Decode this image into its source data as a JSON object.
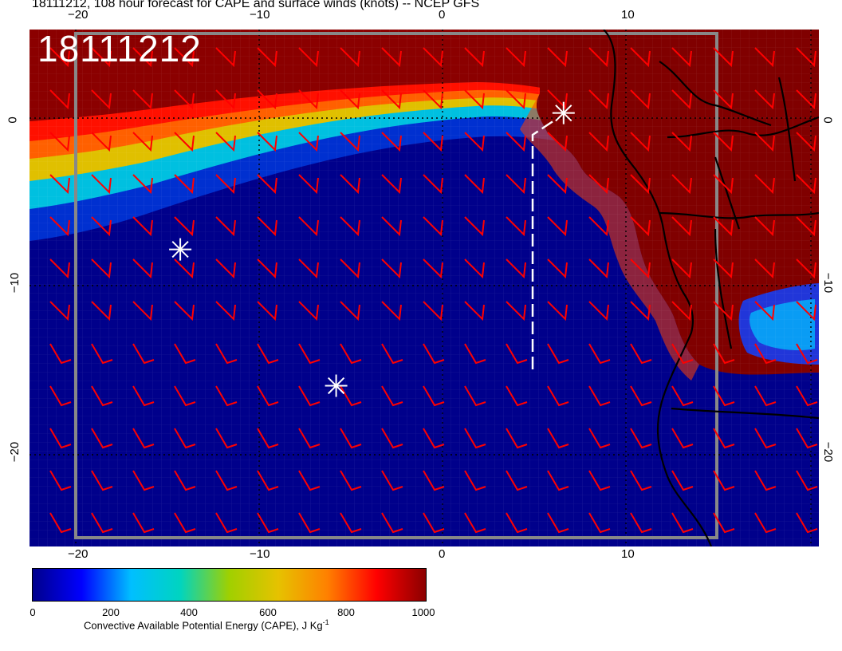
{
  "title": "18111212, 108 hour forecast for CAPE and surface winds (knots) -- NCEP GFS",
  "date_label": "18111212",
  "map": {
    "field": "Convective Available Potential Energy",
    "wind_barb_color": "#ff0000",
    "markers": [
      {
        "name": "storm-marker",
        "lon": -14.3,
        "lat": -7.8
      },
      {
        "name": "storm-marker",
        "lon": -5.8,
        "lat": -15.9
      },
      {
        "name": "storm-marker",
        "lon": 6.6,
        "lat": 0.3
      }
    ],
    "track": [
      [
        4.9,
        -14.8
      ],
      [
        4.9,
        -1.0
      ],
      [
        6.2,
        0.2
      ]
    ],
    "track_color": "#ffffff",
    "land_color": "#7f0000",
    "ocean_color": "#00008b"
  },
  "axes": {
    "top_ticks": [
      "−20",
      "−10",
      "0",
      "10"
    ],
    "bottom_ticks": [
      "−20",
      "−10",
      "0",
      "10"
    ],
    "left_ticks": [
      "0",
      "−10",
      "−20"
    ],
    "right_ticks": [
      "0",
      "−10",
      "−20"
    ]
  },
  "colorbar": {
    "ticks": [
      "0",
      "200",
      "400",
      "600",
      "800",
      "1000"
    ],
    "label_main": "Convective Available Potential Energy (CAPE), J Kg",
    "label_sup": "-1",
    "colors": [
      "#00008b",
      "#0000ff",
      "#00bfff",
      "#00d4c0",
      "#a0d000",
      "#e6c200",
      "#ff8000",
      "#ff0000",
      "#8b0000"
    ]
  }
}
